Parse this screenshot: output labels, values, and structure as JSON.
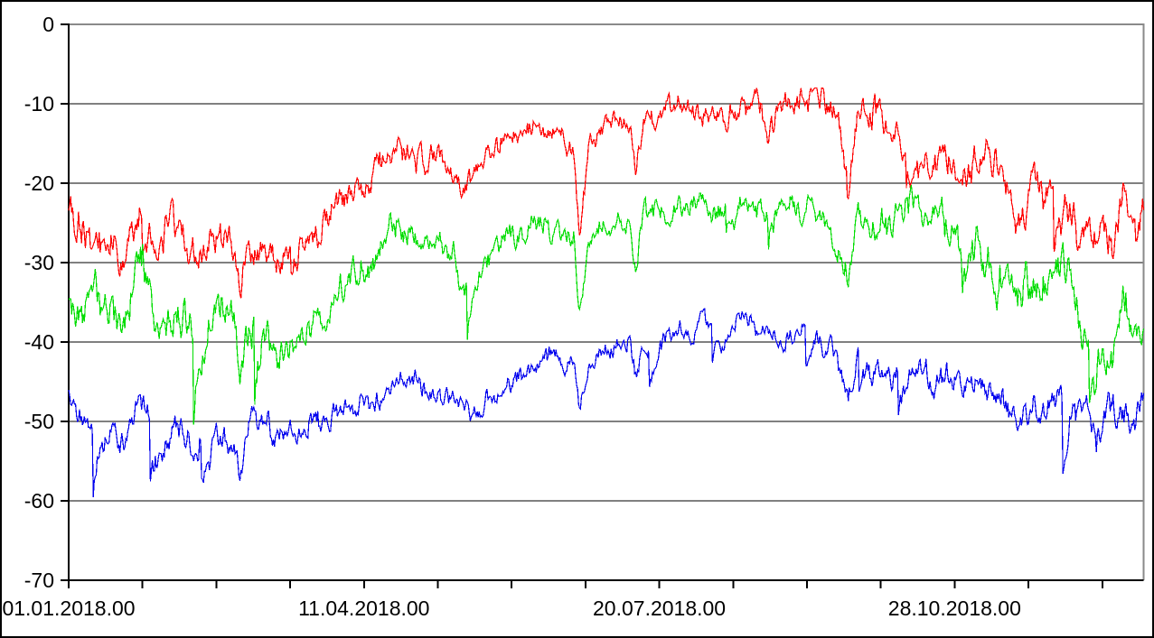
{
  "chart_data": {
    "type": "line",
    "title": "",
    "subtitle": "",
    "legend": null,
    "background_color": "#ffffff",
    "plot_border_color": "#8a8a8a",
    "axis_color": "#000000",
    "grid": {
      "horizontal": true,
      "vertical": false,
      "color": "#000000"
    },
    "x_axis": {
      "label": "",
      "unit": "date (dd.mm.yyyy.hh)",
      "span_days": 364,
      "tick_interval_days": 25,
      "tick_days": [
        0,
        25,
        50,
        75,
        100,
        125,
        150,
        175,
        200,
        225,
        250,
        275,
        300,
        325,
        350
      ],
      "labeled_ticks": [
        {
          "day": 0,
          "label": "01.01.2018.00"
        },
        {
          "day": 100,
          "label": "11.04.2018.00"
        },
        {
          "day": 200,
          "label": "20.07.2018.00"
        },
        {
          "day": 300,
          "label": "28.10.2018.00"
        }
      ]
    },
    "y_axis": {
      "label": "",
      "min": -70,
      "max": 0,
      "tick_step": 10,
      "tick_labels": [
        "0",
        "-10",
        "-20",
        "-30",
        "-40",
        "-50",
        "-60",
        "-70"
      ]
    },
    "series": [
      {
        "name": "series-red",
        "color": "#ff0000",
        "trend_points": [
          [
            0,
            -22.5
          ],
          [
            8,
            -26
          ],
          [
            15,
            -24
          ],
          [
            17,
            -30
          ],
          [
            20,
            -26
          ],
          [
            25,
            -22.5
          ],
          [
            30,
            -27
          ],
          [
            35,
            -25
          ],
          [
            42,
            -28
          ],
          [
            50,
            -25.5
          ],
          [
            56,
            -27
          ],
          [
            58,
            -31
          ],
          [
            61,
            -27
          ],
          [
            65,
            -27.5
          ],
          [
            72,
            -30
          ],
          [
            81,
            -26.5
          ],
          [
            90,
            -23
          ],
          [
            100,
            -20
          ],
          [
            108,
            -16
          ],
          [
            112,
            -14.5
          ],
          [
            118,
            -17
          ],
          [
            126,
            -17
          ],
          [
            133,
            -20.5
          ],
          [
            137,
            -19.5
          ],
          [
            140,
            -18
          ],
          [
            149,
            -15.5
          ],
          [
            158,
            -14
          ],
          [
            165,
            -14
          ],
          [
            171,
            -14.5
          ],
          [
            173,
            -24.5
          ],
          [
            176,
            -15.5
          ],
          [
            183,
            -13.5
          ],
          [
            190,
            -13
          ],
          [
            192,
            -19.5
          ],
          [
            195,
            -13
          ],
          [
            200,
            -12.5
          ],
          [
            208,
            -11.5
          ],
          [
            216,
            -10.5
          ],
          [
            222,
            -12.5
          ],
          [
            228,
            -10.8
          ],
          [
            234,
            -11.5
          ],
          [
            237,
            -14
          ],
          [
            240,
            -12.8
          ],
          [
            247,
            -12
          ],
          [
            253,
            -10.8
          ],
          [
            258,
            -13
          ],
          [
            264,
            -20.5
          ],
          [
            267,
            -13.5
          ],
          [
            272,
            -13.5
          ],
          [
            280,
            -15.5
          ],
          [
            288,
            -14.5
          ],
          [
            295,
            -15
          ],
          [
            300,
            -15.5
          ],
          [
            306,
            -16.5
          ],
          [
            311,
            -17
          ],
          [
            317,
            -19
          ],
          [
            322,
            -23.5
          ],
          [
            327,
            -19.5
          ],
          [
            332,
            -21
          ],
          [
            338,
            -20
          ],
          [
            343,
            -25
          ],
          [
            348,
            -24
          ],
          [
            352,
            -27
          ],
          [
            357,
            -22.5
          ],
          [
            361,
            -26
          ],
          [
            364,
            -23.5
          ]
        ],
        "noise": {
          "fast_amp": 1.6,
          "slow_amp": 1.4,
          "winter_boost": 0.9,
          "spike_chance": 0.008,
          "spike_depth": 5,
          "seed": 101
        }
      },
      {
        "name": "series-green",
        "color": "#00dd00",
        "trend_points": [
          [
            0,
            -34
          ],
          [
            8,
            -37
          ],
          [
            15,
            -34.5
          ],
          [
            17,
            -41
          ],
          [
            20,
            -36.5
          ],
          [
            25,
            -33
          ],
          [
            30,
            -38
          ],
          [
            35,
            -35.5
          ],
          [
            42,
            -39
          ],
          [
            50,
            -36
          ],
          [
            56,
            -38
          ],
          [
            58,
            -45
          ],
          [
            61,
            -38
          ],
          [
            65,
            -37.5
          ],
          [
            72,
            -41
          ],
          [
            81,
            -37
          ],
          [
            90,
            -33.5
          ],
          [
            100,
            -30.5
          ],
          [
            108,
            -27
          ],
          [
            112,
            -26
          ],
          [
            118,
            -28.5
          ],
          [
            126,
            -28.5
          ],
          [
            133,
            -31.5
          ],
          [
            137,
            -30.5
          ],
          [
            140,
            -29
          ],
          [
            149,
            -26.5
          ],
          [
            158,
            -25
          ],
          [
            165,
            -25
          ],
          [
            171,
            -25.5
          ],
          [
            173,
            -35.5
          ],
          [
            176,
            -26.5
          ],
          [
            183,
            -24.5
          ],
          [
            190,
            -23.8
          ],
          [
            192,
            -30.5
          ],
          [
            195,
            -24
          ],
          [
            200,
            -23.2
          ],
          [
            208,
            -22.3
          ],
          [
            216,
            -21
          ],
          [
            222,
            -23
          ],
          [
            228,
            -21.2
          ],
          [
            234,
            -22
          ],
          [
            237,
            -24.5
          ],
          [
            240,
            -23.2
          ],
          [
            247,
            -22.5
          ],
          [
            253,
            -21.5
          ],
          [
            258,
            -24
          ],
          [
            264,
            -32.5
          ],
          [
            267,
            -24.5
          ],
          [
            272,
            -24.5
          ],
          [
            280,
            -26.5
          ],
          [
            288,
            -25.5
          ],
          [
            295,
            -26
          ],
          [
            300,
            -26.5
          ],
          [
            306,
            -28
          ],
          [
            311,
            -28.5
          ],
          [
            317,
            -31
          ],
          [
            322,
            -35
          ],
          [
            327,
            -31.5
          ],
          [
            332,
            -32.5
          ],
          [
            338,
            -31.5
          ],
          [
            343,
            -36.5
          ],
          [
            348,
            -36
          ],
          [
            352,
            -38.5
          ],
          [
            357,
            -34
          ],
          [
            361,
            -38
          ],
          [
            364,
            -36.5
          ]
        ],
        "noise": {
          "fast_amp": 1.7,
          "slow_amp": 1.5,
          "winter_boost": 0.9,
          "spike_chance": 0.009,
          "spike_depth": 5.5,
          "seed": 202
        }
      },
      {
        "name": "series-blue",
        "color": "#0000ee",
        "trend_points": [
          [
            0,
            -47.5
          ],
          [
            8,
            -51
          ],
          [
            15,
            -49.5
          ],
          [
            17,
            -53
          ],
          [
            20,
            -51
          ],
          [
            25,
            -48.5
          ],
          [
            30,
            -52
          ],
          [
            35,
            -50.5
          ],
          [
            42,
            -52.5
          ],
          [
            50,
            -50.5
          ],
          [
            56,
            -54
          ],
          [
            58,
            -59
          ],
          [
            61,
            -52.5
          ],
          [
            65,
            -51
          ],
          [
            72,
            -52.5
          ],
          [
            81,
            -50
          ],
          [
            90,
            -48.5
          ],
          [
            100,
            -46.5
          ],
          [
            108,
            -44.5
          ],
          [
            112,
            -43.5
          ],
          [
            118,
            -45.5
          ],
          [
            126,
            -45.5
          ],
          [
            133,
            -46.5
          ],
          [
            137,
            -48
          ],
          [
            141,
            -47
          ],
          [
            149,
            -44
          ],
          [
            158,
            -42.5
          ],
          [
            165,
            -42
          ],
          [
            171,
            -42
          ],
          [
            173,
            -48
          ],
          [
            176,
            -42.5
          ],
          [
            183,
            -41
          ],
          [
            190,
            -40.5
          ],
          [
            192,
            -44.5
          ],
          [
            195,
            -40.5
          ],
          [
            200,
            -39.5
          ],
          [
            208,
            -38.5
          ],
          [
            216,
            -36.5
          ],
          [
            222,
            -38
          ],
          [
            228,
            -36.5
          ],
          [
            234,
            -37.5
          ],
          [
            240,
            -39
          ],
          [
            247,
            -38.5
          ],
          [
            253,
            -38
          ],
          [
            258,
            -40
          ],
          [
            264,
            -46.5
          ],
          [
            267,
            -41
          ],
          [
            272,
            -41.5
          ],
          [
            280,
            -42.5
          ],
          [
            288,
            -42.5
          ],
          [
            295,
            -43
          ],
          [
            300,
            -43.5
          ],
          [
            306,
            -44.5
          ],
          [
            311,
            -45
          ],
          [
            317,
            -47
          ],
          [
            322,
            -49
          ],
          [
            327,
            -47.5
          ],
          [
            332,
            -48
          ],
          [
            338,
            -47.5
          ],
          [
            345,
            -50
          ],
          [
            348,
            -56
          ],
          [
            350,
            -51
          ],
          [
            352,
            -49.5
          ],
          [
            357,
            -51.5
          ],
          [
            361,
            -53
          ],
          [
            364,
            -49
          ]
        ],
        "noise": {
          "fast_amp": 1.4,
          "slow_amp": 1.2,
          "winter_boost": 0.55,
          "spike_chance": 0.007,
          "spike_depth": 4.5,
          "seed": 303
        }
      }
    ]
  }
}
